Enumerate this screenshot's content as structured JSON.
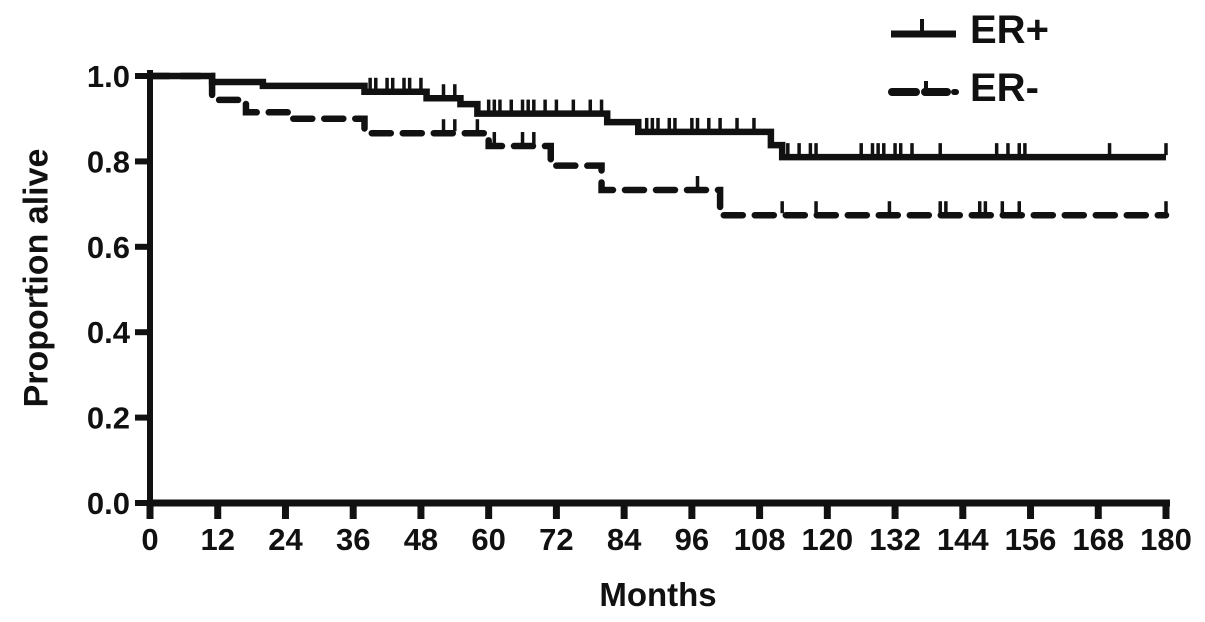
{
  "figure": {
    "background": "#ffffff",
    "title": ""
  },
  "chart_data": {
    "type": "line",
    "subtype": "kaplan-meier-step",
    "title": "",
    "xlabel": "Months",
    "ylabel": "Proportion alive",
    "xlim": [
      0,
      180
    ],
    "ylim": [
      0.0,
      1.0
    ],
    "x_ticks": [
      0,
      12,
      24,
      36,
      48,
      60,
      72,
      84,
      96,
      108,
      120,
      132,
      144,
      156,
      168,
      180
    ],
    "y_ticks": [
      0.0,
      0.2,
      0.4,
      0.6,
      0.8,
      1.0
    ],
    "y_tick_labels": [
      "0.0",
      "0.2",
      "0.4",
      "0.6",
      "0.8",
      "1.0"
    ],
    "grid": false,
    "legend_position": "top-right",
    "line_color": "#111111",
    "series": [
      {
        "id": "er-plus",
        "name": "ER+",
        "style": "solid",
        "steps": [
          [
            0,
            1.0
          ],
          [
            11,
            0.986
          ],
          [
            20,
            0.977
          ],
          [
            38,
            0.963
          ],
          [
            49,
            0.948
          ],
          [
            55,
            0.934
          ],
          [
            58,
            0.912
          ],
          [
            81,
            0.892
          ],
          [
            86.5,
            0.869
          ],
          [
            110,
            0.838
          ],
          [
            112,
            0.81
          ]
        ],
        "end_x": 180,
        "final_value": 0.81,
        "censor_marks": [
          39,
          40,
          42,
          43,
          45,
          46,
          48,
          52,
          54,
          60,
          61,
          62,
          64,
          66,
          67,
          68,
          70,
          72,
          75,
          78,
          80,
          88,
          89,
          90,
          92,
          93,
          96,
          97,
          99,
          101,
          104,
          107,
          113,
          115,
          117,
          118,
          126,
          128,
          129,
          130,
          132,
          133,
          135,
          140,
          150,
          152,
          154,
          155,
          170,
          180
        ]
      },
      {
        "id": "er-minus",
        "name": "ER-",
        "style": "dashed",
        "steps": [
          [
            0,
            1.0
          ],
          [
            11,
            0.944
          ],
          [
            17,
            0.915
          ],
          [
            25,
            0.9
          ],
          [
            38,
            0.866
          ],
          [
            60,
            0.836
          ],
          [
            71,
            0.79
          ],
          [
            80,
            0.733
          ],
          [
            101,
            0.674
          ]
        ],
        "end_x": 180,
        "final_value": 0.67,
        "censor_marks": [
          52,
          54,
          58,
          61,
          66,
          68,
          97,
          112,
          118,
          131,
          140,
          141,
          147,
          148,
          151,
          154,
          180
        ]
      }
    ]
  }
}
